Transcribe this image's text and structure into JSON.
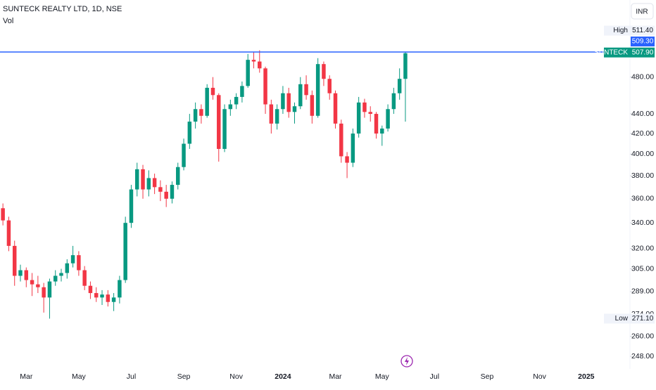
{
  "chart_data": {
    "type": "candlestick",
    "title": "SUNTECK REALTY LTD, 1D, NSE",
    "subtitle": "Vol",
    "currency": "INR",
    "log": true,
    "up_color": "#089981",
    "down_color": "#f23645",
    "categories": [
      null,
      null,
      null,
      null,
      "Mar",
      null,
      null,
      null,
      null,
      null,
      null,
      null,
      null,
      "May",
      null,
      null,
      null,
      null,
      null,
      null,
      null,
      null,
      "Jul",
      null,
      null,
      null,
      null,
      null,
      null,
      null,
      null,
      "Sep",
      null,
      null,
      null,
      null,
      null,
      null,
      null,
      null,
      "Nov",
      null,
      null,
      null,
      null,
      null,
      null,
      null,
      "2024",
      null,
      null,
      null,
      null,
      null,
      null,
      null,
      null,
      "Mar",
      null,
      null,
      null,
      null,
      null,
      null,
      null,
      "May",
      null,
      null,
      null,
      null,
      null,
      null,
      null,
      null,
      "Jul",
      null,
      null,
      null,
      null,
      null,
      null,
      null,
      null,
      "Sep",
      null,
      null,
      null,
      null,
      null,
      null,
      null,
      null,
      "Nov",
      null,
      null,
      null,
      null,
      null,
      null,
      null,
      "2025",
      null,
      null,
      null,
      null,
      null,
      null,
      null
    ],
    "open": [
      352,
      342,
      322,
      300,
      304,
      297,
      294,
      292,
      285,
      296,
      300,
      302,
      309,
      315,
      304,
      293,
      288,
      285,
      287,
      282,
      285,
      297,
      340,
      368,
      386,
      368,
      378,
      370,
      366,
      360,
      372,
      388,
      410,
      432,
      445,
      438,
      468,
      460,
      405,
      445,
      450,
      458,
      470,
      500,
      498,
      490,
      450,
      430,
      445,
      462,
      442,
      448,
      472,
      460,
      438,
      495,
      478,
      462,
      430,
      398,
      392,
      420,
      452,
      442,
      440,
      420,
      425,
      445,
      462,
      478,
      null,
      null,
      null,
      null,
      null,
      null,
      null,
      null,
      null,
      null,
      null,
      null,
      null,
      null,
      null,
      null,
      null,
      null,
      null,
      null,
      null,
      null,
      null,
      null,
      null,
      null,
      null,
      null,
      null,
      null,
      null,
      null,
      null,
      null,
      null,
      null,
      null,
      null
    ],
    "high": [
      356,
      345,
      326,
      308,
      306,
      302,
      300,
      295,
      298,
      304,
      305,
      312,
      322,
      318,
      307,
      296,
      292,
      290,
      290,
      288,
      300,
      345,
      372,
      392,
      390,
      385,
      382,
      376,
      372,
      375,
      392,
      415,
      440,
      452,
      450,
      472,
      480,
      462,
      450,
      455,
      462,
      475,
      507,
      509,
      511.4,
      492,
      455,
      450,
      470,
      468,
      452,
      480,
      482,
      465,
      502,
      498,
      482,
      465,
      434,
      402,
      425,
      458,
      456,
      448,
      442,
      428,
      450,
      468,
      490,
      509,
      null,
      null,
      null,
      null,
      null,
      null,
      null,
      null,
      null,
      null,
      null,
      null,
      null,
      null,
      null,
      null,
      null,
      null,
      null,
      null,
      null,
      null,
      null,
      null,
      null,
      null,
      null,
      null,
      null,
      null,
      null,
      null,
      null,
      null,
      null,
      null,
      null,
      null
    ],
    "low": [
      338,
      318,
      293,
      296,
      292,
      286,
      288,
      275,
      271.1,
      293,
      296,
      298,
      306,
      300,
      290,
      284,
      282,
      280,
      279,
      276,
      281,
      295,
      336,
      362,
      360,
      362,
      364,
      358,
      353,
      356,
      368,
      385,
      405,
      425,
      430,
      436,
      455,
      393,
      402,
      438,
      445,
      452,
      468,
      490,
      485,
      440,
      420,
      424,
      440,
      436,
      430,
      445,
      455,
      430,
      436,
      470,
      455,
      425,
      392,
      378,
      388,
      416,
      436,
      432,
      415,
      408,
      422,
      440,
      455,
      432,
      null,
      null,
      null,
      null,
      null,
      null,
      null,
      null,
      null,
      null,
      null,
      null,
      null,
      null,
      null,
      null,
      null,
      null,
      null,
      null,
      null,
      null,
      null,
      null,
      null,
      null,
      null,
      null,
      null,
      null,
      null,
      null,
      null,
      null,
      null,
      null,
      null,
      null
    ],
    "close": [
      342,
      322,
      300,
      304,
      297,
      294,
      292,
      285,
      296,
      300,
      302,
      309,
      315,
      304,
      293,
      288,
      285,
      287,
      282,
      285,
      297,
      340,
      368,
      386,
      368,
      378,
      370,
      366,
      360,
      372,
      388,
      410,
      432,
      445,
      438,
      468,
      460,
      405,
      445,
      450,
      458,
      470,
      500,
      498,
      490,
      450,
      430,
      445,
      462,
      442,
      448,
      472,
      460,
      438,
      495,
      478,
      462,
      430,
      398,
      392,
      420,
      452,
      442,
      440,
      420,
      425,
      445,
      462,
      478,
      507.9,
      null,
      null,
      null,
      null,
      null,
      null,
      null,
      null,
      null,
      null,
      null,
      null,
      null,
      null,
      null,
      null,
      null,
      null,
      null,
      null,
      null,
      null,
      null,
      null,
      null,
      null,
      null,
      null,
      null,
      null,
      null,
      null,
      null,
      null,
      null,
      null,
      null,
      null
    ],
    "ylim": [
      240.7,
      576
    ],
    "yticks": [
      {
        "value": 248,
        "label": "248.00"
      },
      {
        "value": 260,
        "label": "260.00"
      },
      {
        "value": 274,
        "label": "274.00"
      },
      {
        "value": 289,
        "label": "289.00"
      },
      {
        "value": 305,
        "label": "305.00"
      },
      {
        "value": 320,
        "label": "320.00"
      },
      {
        "value": 340,
        "label": "340.00"
      },
      {
        "value": 360,
        "label": "360.00"
      },
      {
        "value": 380,
        "label": "380.00"
      },
      {
        "value": 400,
        "label": "400.00"
      },
      {
        "value": 420,
        "label": "420.00"
      },
      {
        "value": 440,
        "label": "440.00"
      },
      {
        "value": 480,
        "label": "480.00"
      }
    ],
    "high_marker": {
      "label": "High",
      "value": 511.4,
      "value_label": "511.40"
    },
    "low_marker": {
      "label": "Low",
      "value": 271.1,
      "value_label": "271.10"
    },
    "price_line": {
      "value": 509.3,
      "value_label": "509.30",
      "color": "#2962ff"
    },
    "last_price": {
      "label": "SUNTECK",
      "value": 507.9,
      "value_label": "507.90"
    }
  }
}
